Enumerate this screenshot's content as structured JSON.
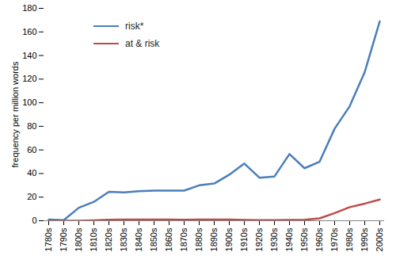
{
  "chart_data": {
    "type": "line",
    "y_label": "frequency per million words",
    "categories": [
      "1780s",
      "1790s",
      "1800s",
      "1810s",
      "1820s",
      "1830s",
      "1840s",
      "1850s",
      "1860s",
      "1870s",
      "1880s",
      "1890s",
      "1900s",
      "1910s",
      "1920s",
      "1930s",
      "1940s",
      "1950s",
      "1960s",
      "1970s",
      "1980s",
      "1990s",
      "2000s"
    ],
    "series": [
      {
        "name": "risk*",
        "color": "#4a7ebb",
        "values": [
          1,
          0.5,
          11,
          16,
          24.5,
          24,
          25,
          25.5,
          25.5,
          25.5,
          30,
          31.5,
          39,
          48.5,
          36.5,
          37.5,
          56.5,
          44.5,
          50,
          78,
          97,
          126,
          169
        ]
      },
      {
        "name": "at & risk",
        "color": "#be4b48",
        "values": [
          0,
          0,
          0,
          0.3,
          0.8,
          1,
          1,
          1,
          1,
          0.8,
          1,
          1,
          1,
          0.7,
          0.5,
          0.5,
          0.7,
          0.8,
          2,
          6.5,
          11.5,
          14.5,
          18
        ]
      }
    ],
    "ylim": [
      0,
      180
    ],
    "yticks": [
      0,
      20,
      40,
      60,
      80,
      100,
      120,
      140,
      160,
      180
    ],
    "grid": false,
    "legend": "top-left"
  }
}
